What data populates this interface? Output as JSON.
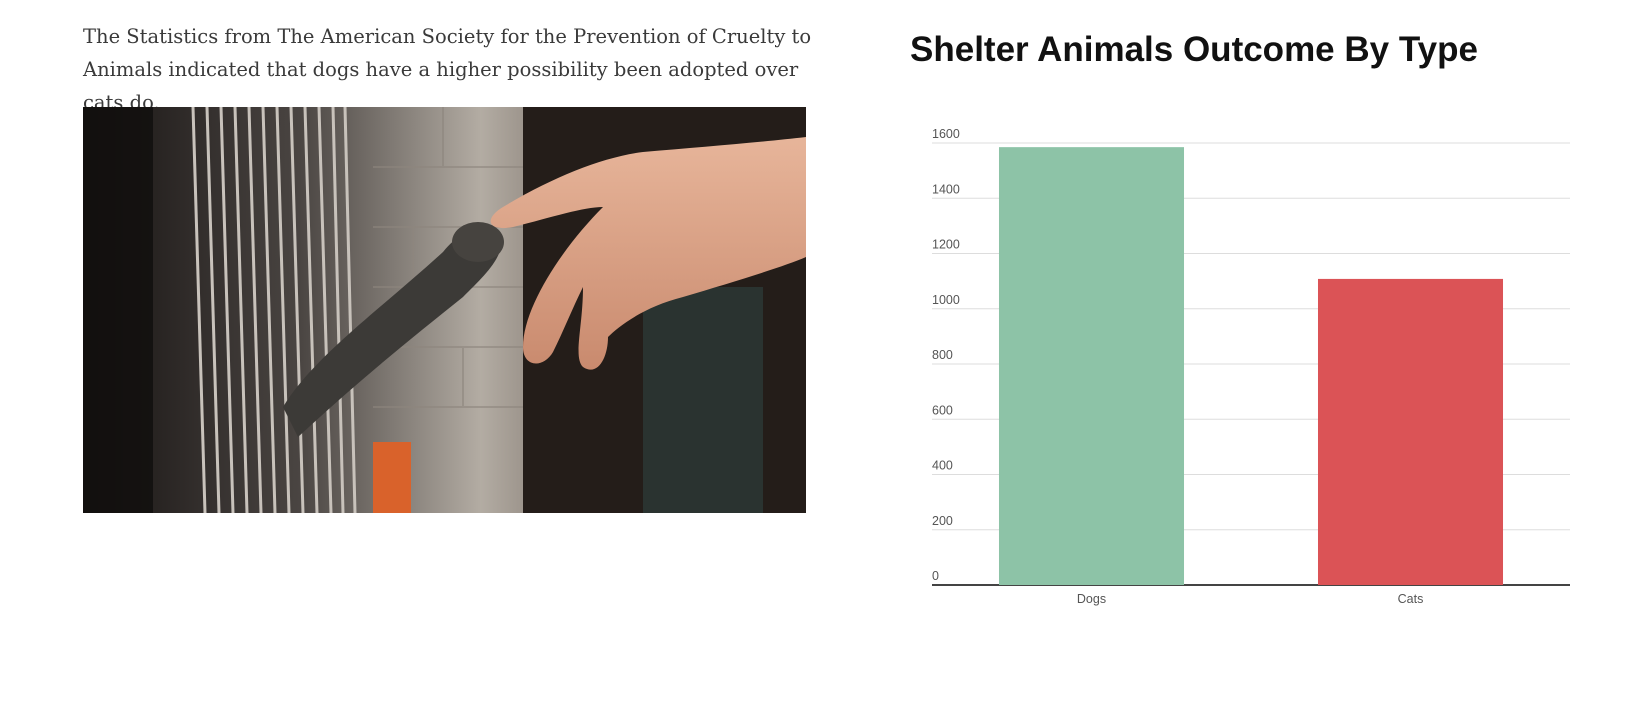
{
  "article": {
    "text": "The Statistics from The American Society for the Prevention of Cruelty to Animals indicated that dogs have a higher possibility been adopted over cats do."
  },
  "photo": {
    "icon": "cat-paw-and-human-hand-photo"
  },
  "colors": {
    "dogs_bar": "#8dc3a7",
    "cats_bar": "#db5356",
    "grid": "#dddddd",
    "axis": "#444444"
  },
  "chart_data": {
    "type": "bar",
    "title": "Shelter Animals Outcome By Type",
    "categories": [
      "Dogs",
      "Cats"
    ],
    "values": [
      1585,
      1108
    ],
    "xlabel": "",
    "ylabel": "",
    "ylim": [
      0,
      1600
    ],
    "yticks": [
      0,
      200,
      400,
      600,
      800,
      1000,
      1200,
      1400,
      1600
    ],
    "grid": true,
    "legend": "none"
  }
}
